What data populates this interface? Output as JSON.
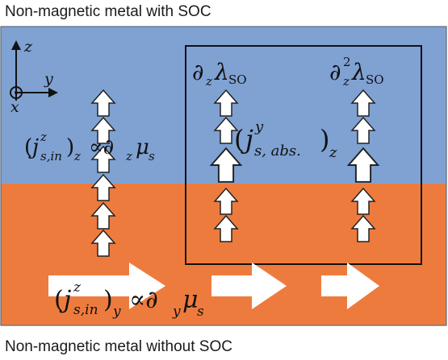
{
  "labels": {
    "top_title": "Non-magnetic metal with SOC",
    "bottom_title": "Non-magnetic metal without SOC"
  },
  "axes": {
    "z": "z",
    "y": "y",
    "x": "x"
  },
  "equations": {
    "left_in_z": {
      "j": "j",
      "sup": "z",
      "sub": "s,in",
      "outer_sub": "z",
      "rel": "∝∂",
      "rel_sub": "z",
      "mu": "μ",
      "mu_sub": "s"
    },
    "d_lambda": {
      "d": "∂",
      "d_sub": "z",
      "lambda": "λ",
      "lambda_sub": "SO"
    },
    "d2_lambda": {
      "d": "∂",
      "d_sup": "2",
      "d_sub": "z",
      "lambda": "λ",
      "lambda_sub": "SO"
    },
    "abs": {
      "j": "j",
      "sup": "y",
      "sub": "s, abs.",
      "outer_sub": "z"
    },
    "bottom_in_y": {
      "j": "j",
      "sup": "z",
      "sub": "s,in",
      "outer_sub": "y",
      "rel": "∝∂",
      "rel_sub": "y",
      "mu": "μ",
      "mu_sub": "s"
    }
  },
  "colors": {
    "soc_layer": "#7fa2d3",
    "non_soc_layer": "#ee7b3e",
    "arrow_fill": "#ffffff",
    "arrow_stroke": "#222222",
    "box_stroke": "#111111"
  }
}
